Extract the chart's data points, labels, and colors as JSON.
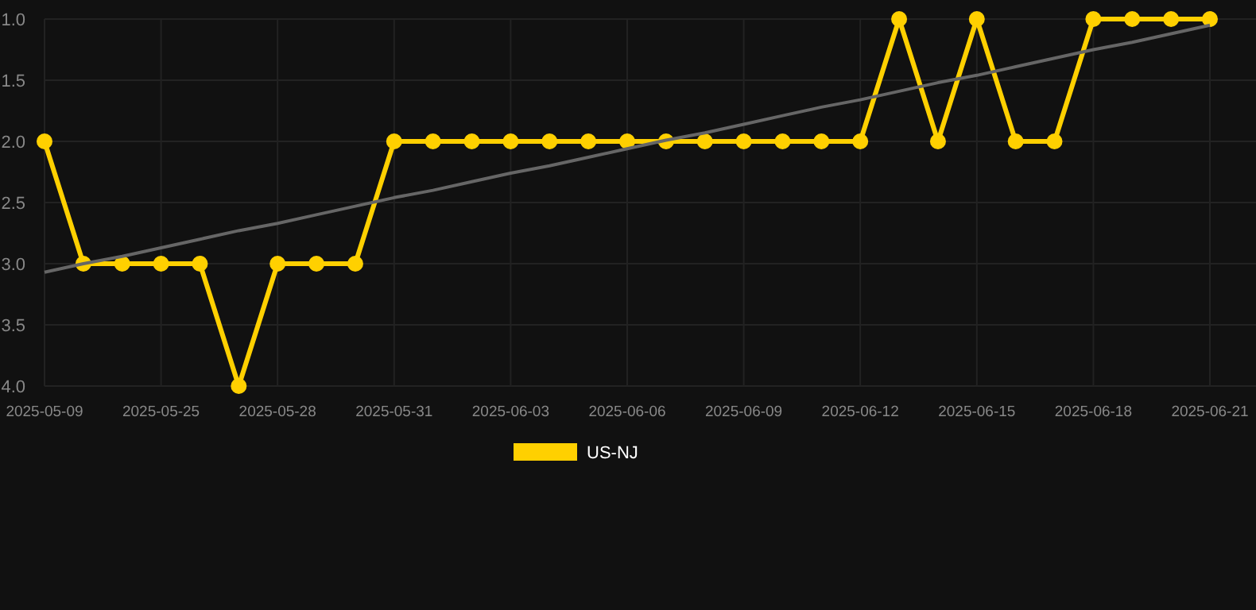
{
  "chart_data": {
    "type": "line",
    "categories": [
      "2025-05-09",
      null,
      null,
      "2025-05-25",
      null,
      null,
      "2025-05-28",
      null,
      null,
      "2025-05-31",
      null,
      null,
      "2025-06-03",
      null,
      null,
      "2025-06-06",
      null,
      null,
      "2025-06-09",
      null,
      null,
      "2025-06-12",
      null,
      null,
      "2025-06-15",
      null,
      null,
      "2025-06-18",
      null,
      null,
      "2025-06-21"
    ],
    "series": [
      {
        "name": "US-NJ",
        "color": "#ffd000",
        "marker": "circle",
        "values": [
          2,
          3,
          3,
          3,
          3,
          4,
          3,
          3,
          3,
          2,
          2,
          2,
          2,
          2,
          2,
          2,
          2,
          2,
          2,
          2,
          2,
          2,
          1,
          2,
          1,
          2,
          2,
          1,
          1,
          1,
          1
        ]
      },
      {
        "type": "line",
        "color": "#666666",
        "marker": "none",
        "values": [
          3.07,
          3.0,
          2.94,
          2.87,
          2.8,
          2.73,
          2.67,
          2.6,
          2.53,
          2.46,
          2.4,
          2.33,
          2.26,
          2.2,
          2.13,
          2.06,
          1.99,
          1.93,
          1.86,
          1.79,
          1.72,
          1.66,
          1.59,
          1.52,
          1.46,
          1.39,
          1.32,
          1.25,
          1.19,
          1.12,
          1.05
        ]
      }
    ],
    "ylim": [
      4,
      1
    ],
    "yticks": [
      {
        "value": 1,
        "label": "1.0"
      },
      {
        "value": 1.5,
        "label": "1.5"
      },
      {
        "value": 2,
        "label": "2.0"
      },
      {
        "value": 2.5,
        "label": "2.5"
      },
      {
        "value": 3,
        "label": "3.0"
      },
      {
        "value": 3.5,
        "label": "3.5"
      },
      {
        "value": 4,
        "label": "4.0"
      }
    ],
    "grid": true,
    "legend": "bottom",
    "line_style": "solid"
  }
}
